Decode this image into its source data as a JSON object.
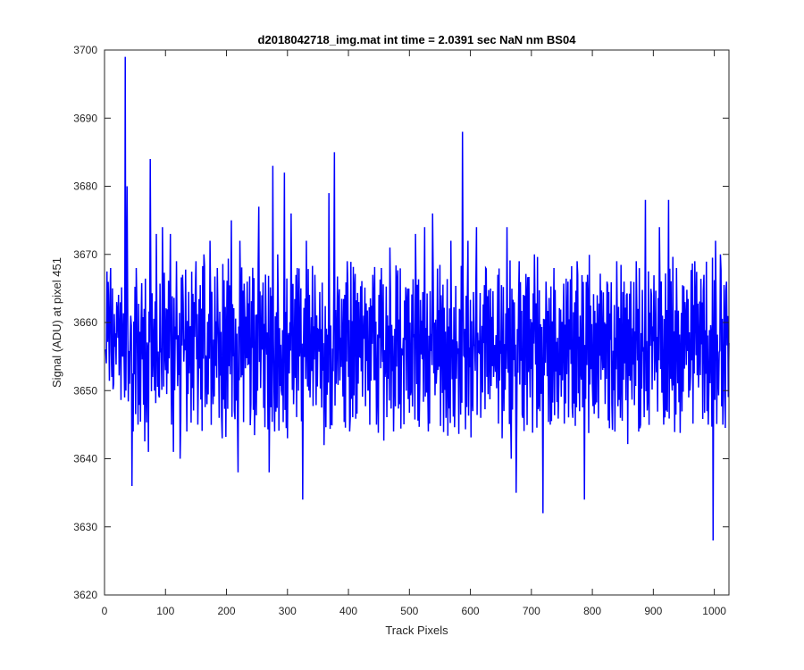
{
  "chart_data": {
    "type": "line",
    "title": "d2018042718_img.mat int time = 2.0391 sec  NaN nm BS04",
    "xlabel": "Track Pixels",
    "ylabel": "Signal (ADU) at pixel 451",
    "xlim": [
      0,
      1024
    ],
    "ylim": [
      3620,
      3700
    ],
    "xticks": [
      0,
      100,
      200,
      300,
      400,
      500,
      600,
      700,
      800,
      900,
      1000
    ],
    "yticks": [
      3620,
      3630,
      3640,
      3650,
      3660,
      3670,
      3680,
      3690,
      3700
    ],
    "grid": false,
    "legend": "none",
    "series": [
      {
        "color": "#0000ff",
        "x_start": 1,
        "x_step": 1,
        "n_points": 1024,
        "typical_mean": 3657,
        "typical_range": [
          3644,
          3668
        ],
        "points": [
          [
            1,
            3656
          ],
          [
            3,
            3654
          ],
          [
            7,
            3660
          ],
          [
            10,
            3668
          ],
          [
            12,
            3652
          ],
          [
            15,
            3651
          ],
          [
            20,
            3663
          ],
          [
            25,
            3658
          ],
          [
            30,
            3655
          ],
          [
            33,
            3649
          ],
          [
            34,
            3699
          ],
          [
            35,
            3650
          ],
          [
            37,
            3680
          ],
          [
            38,
            3662
          ],
          [
            41,
            3651
          ],
          [
            43,
            3661
          ],
          [
            45,
            3636
          ],
          [
            47,
            3644
          ],
          [
            52,
            3668
          ],
          [
            55,
            3645
          ],
          [
            60,
            3660
          ],
          [
            68,
            3650
          ],
          [
            72,
            3641
          ],
          [
            75,
            3684
          ],
          [
            79,
            3652
          ],
          [
            85,
            3673
          ],
          [
            90,
            3649
          ],
          [
            95,
            3674
          ],
          [
            100,
            3653
          ],
          [
            108,
            3673
          ],
          [
            110,
            3645
          ],
          [
            113,
            3641
          ],
          [
            118,
            3669
          ],
          [
            124,
            3640
          ],
          [
            128,
            3667
          ],
          [
            135,
            3644
          ],
          [
            140,
            3659
          ],
          [
            150,
            3669
          ],
          [
            153,
            3645
          ],
          [
            163,
            3670
          ],
          [
            168,
            3648
          ],
          [
            173,
            3672
          ],
          [
            178,
            3648
          ],
          [
            185,
            3668
          ],
          [
            188,
            3646
          ],
          [
            193,
            3643
          ],
          [
            200,
            3658
          ],
          [
            208,
            3675
          ],
          [
            213,
            3647
          ],
          [
            219,
            3638
          ],
          [
            222,
            3672
          ],
          [
            230,
            3661
          ],
          [
            240,
            3648
          ],
          [
            247,
            3651
          ],
          [
            253,
            3677
          ],
          [
            258,
            3664
          ],
          [
            265,
            3659
          ],
          [
            270,
            3638
          ],
          [
            276,
            3683
          ],
          [
            279,
            3644
          ],
          [
            284,
            3670
          ],
          [
            290,
            3650
          ],
          [
            295,
            3682
          ],
          [
            300,
            3643
          ],
          [
            306,
            3676
          ],
          [
            310,
            3648
          ],
          [
            316,
            3668
          ],
          [
            320,
            3655
          ],
          [
            325,
            3634
          ],
          [
            331,
            3672
          ],
          [
            337,
            3649
          ],
          [
            345,
            3667
          ],
          [
            350,
            3659
          ],
          [
            360,
            3642
          ],
          [
            368,
            3679
          ],
          [
            373,
            3645
          ],
          [
            377,
            3685
          ],
          [
            380,
            3651
          ],
          [
            384,
            3663
          ],
          [
            390,
            3657
          ],
          [
            398,
            3669
          ],
          [
            402,
            3644
          ],
          [
            410,
            3665
          ],
          [
            418,
            3655
          ],
          [
            425,
            3661
          ],
          [
            432,
            3650
          ],
          [
            440,
            3667
          ],
          [
            446,
            3645
          ],
          [
            454,
            3668
          ],
          [
            460,
            3652
          ],
          [
            468,
            3671
          ],
          [
            474,
            3644
          ],
          [
            480,
            3666
          ],
          [
            488,
            3656
          ],
          [
            496,
            3663
          ],
          [
            503,
            3650
          ],
          [
            510,
            3673
          ],
          [
            517,
            3651
          ],
          [
            525,
            3674
          ],
          [
            531,
            3644
          ],
          [
            538,
            3676
          ],
          [
            544,
            3651
          ],
          [
            552,
            3664
          ],
          [
            560,
            3646
          ],
          [
            568,
            3672
          ],
          [
            575,
            3650
          ],
          [
            582,
            3662
          ],
          [
            587,
            3688
          ],
          [
            590,
            3655
          ],
          [
            596,
            3672
          ],
          [
            603,
            3649
          ],
          [
            610,
            3674
          ],
          [
            617,
            3646
          ],
          [
            625,
            3668
          ],
          [
            631,
            3656
          ],
          [
            638,
            3652
          ],
          [
            645,
            3667
          ],
          [
            652,
            3643
          ],
          [
            660,
            3674
          ],
          [
            667,
            3640
          ],
          [
            675,
            3635
          ],
          [
            680,
            3669
          ],
          [
            686,
            3646
          ],
          [
            692,
            3664
          ],
          [
            697,
            3655
          ],
          [
            705,
            3670
          ],
          [
            712,
            3648
          ],
          [
            719,
            3632
          ],
          [
            724,
            3666
          ],
          [
            731,
            3645
          ],
          [
            737,
            3668
          ],
          [
            745,
            3651
          ],
          [
            752,
            3659
          ],
          [
            760,
            3666
          ],
          [
            768,
            3646
          ],
          [
            775,
            3669
          ],
          [
            781,
            3653
          ],
          [
            787,
            3634
          ],
          [
            792,
            3667
          ],
          [
            800,
            3651
          ],
          [
            808,
            3664
          ],
          [
            816,
            3656
          ],
          [
            824,
            3666
          ],
          [
            832,
            3648
          ],
          [
            840,
            3669
          ],
          [
            848,
            3652
          ],
          [
            856,
            3664
          ],
          [
            864,
            3654
          ],
          [
            872,
            3669
          ],
          [
            879,
            3645
          ],
          [
            887,
            3678
          ],
          [
            891,
            3649
          ],
          [
            897,
            3664
          ],
          [
            903,
            3656
          ],
          [
            910,
            3674
          ],
          [
            917,
            3645
          ],
          [
            925,
            3678
          ],
          [
            931,
            3650
          ],
          [
            938,
            3668
          ],
          [
            945,
            3655
          ],
          [
            952,
            3663
          ],
          [
            960,
            3650
          ],
          [
            968,
            3669
          ],
          [
            975,
            3656
          ],
          [
            983,
            3667
          ],
          [
            990,
            3645
          ],
          [
            995,
            3658
          ],
          [
            998,
            3628
          ],
          [
            1002,
            3672
          ],
          [
            1006,
            3652
          ],
          [
            1010,
            3670
          ],
          [
            1014,
            3645
          ],
          [
            1017,
            3660
          ],
          [
            1020,
            3666
          ],
          [
            1024,
            3657
          ]
        ]
      }
    ]
  }
}
